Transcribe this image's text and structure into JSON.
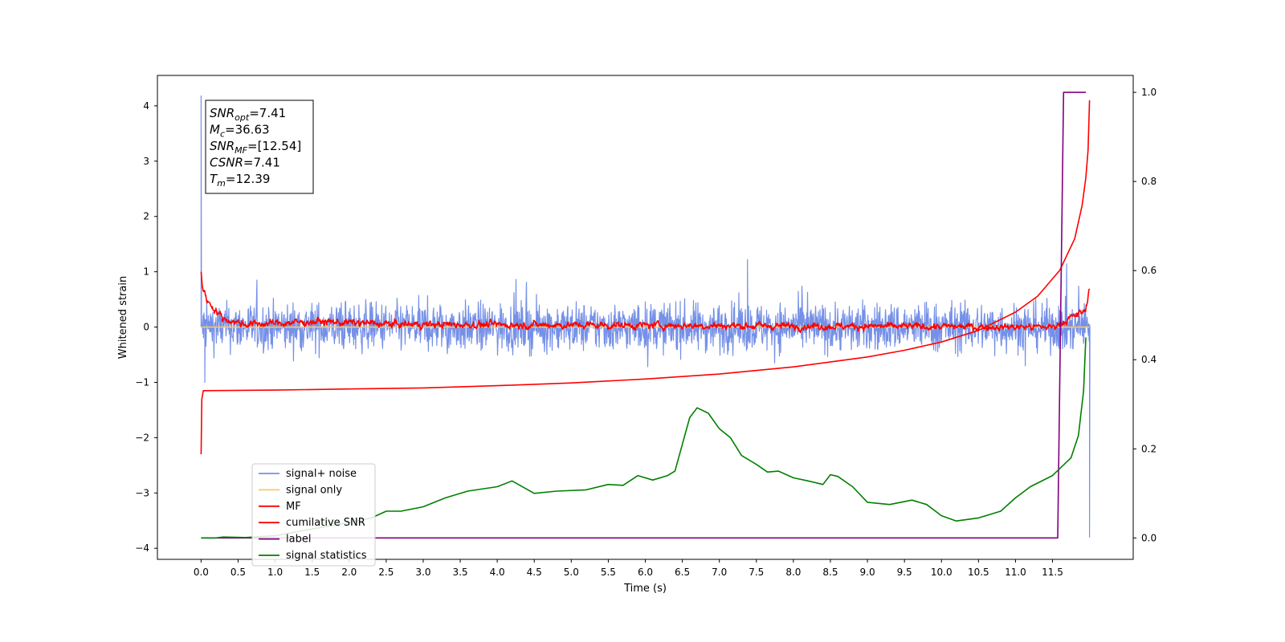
{
  "chart_data": {
    "type": "line",
    "title": "",
    "xlabel": "Time (s)",
    "ylabel": "Whitened strain",
    "y2label": "",
    "xlim": [
      -0.59,
      12.59
    ],
    "ylim": [
      -4.2,
      4.55
    ],
    "y2lim": [
      -0.048,
      1.038
    ],
    "xticks": [
      0.0,
      0.5,
      1.0,
      1.5,
      2.0,
      2.5,
      3.0,
      3.5,
      4.0,
      4.5,
      5.0,
      5.5,
      6.0,
      6.5,
      7.0,
      7.5,
      8.0,
      8.5,
      9.0,
      9.5,
      10.0,
      10.5,
      11.0,
      11.5
    ],
    "xtick_labels": [
      "0.0",
      "0.5",
      "1.0",
      "1.5",
      "2.0",
      "2.5",
      "3.0",
      "3.5",
      "4.0",
      "4.5",
      "5.0",
      "5.5",
      "6.0",
      "6.5",
      "7.0",
      "7.5",
      "8.0",
      "8.5",
      "9.0",
      "9.5",
      "10.0",
      "10.5",
      "11.0",
      "11.5"
    ],
    "yticks": [
      -4,
      -3,
      -2,
      -1,
      0,
      1,
      2,
      3,
      4
    ],
    "ytick_labels": [
      "−4",
      "−3",
      "−2",
      "−1",
      "0",
      "1",
      "2",
      "3",
      "4"
    ],
    "y2ticks": [
      0.0,
      0.2,
      0.4,
      0.6,
      0.8,
      1.0
    ],
    "y2tick_labels": [
      "0.0",
      "0.2",
      "0.4",
      "0.6",
      "0.8",
      "1.0"
    ],
    "grid": false,
    "legend_position": "lower-left",
    "annotation": {
      "lines": [
        {
          "label": "SNR",
          "sub": "opt",
          "value": "=7.41"
        },
        {
          "label": "M",
          "sub": "c",
          "value": "=36.63"
        },
        {
          "label": "SNR",
          "sub": "MF",
          "value": "=[12.54]"
        },
        {
          "label": "CSNR",
          "sub": "",
          "value": "=7.41"
        },
        {
          "label": "T",
          "sub": "m",
          "value": "=12.39"
        }
      ]
    },
    "series": [
      {
        "name": "signal+ noise",
        "axis": "left",
        "color": "#7590e8",
        "kind": "noise",
        "x_range": [
          0.0,
          12.0
        ],
        "amplitude": 0.42,
        "mean": 0.0,
        "spikes": [
          {
            "x": 0.0,
            "y": 4.18
          },
          {
            "x": 0.05,
            "y": -1.0
          },
          {
            "x": 7.38,
            "y": 1.22
          },
          {
            "x": 12.0,
            "y": -3.8
          }
        ]
      },
      {
        "name": "signal only",
        "axis": "left",
        "color": "#f5c870",
        "kind": "flat",
        "x_range": [
          0.0,
          12.0
        ],
        "mean": 0.0
      },
      {
        "name": "MF",
        "axis": "left",
        "color": "#ff0000",
        "kind": "noise",
        "x_range": [
          0.0,
          12.0
        ],
        "amplitude": 0.07,
        "mean": -0.02,
        "points": [
          [
            0.0,
            1.0
          ],
          [
            0.02,
            0.7
          ],
          [
            0.1,
            0.45
          ],
          [
            0.3,
            0.15
          ],
          [
            0.6,
            0.05
          ],
          [
            1.6,
            0.1
          ],
          [
            2.6,
            0.05
          ],
          [
            11.5,
            0.0
          ],
          [
            11.95,
            0.3
          ],
          [
            12.0,
            0.75
          ]
        ]
      },
      {
        "name": "cumilative SNR",
        "axis": "left",
        "color": "#ff0000",
        "kind": "points",
        "points": [
          [
            0.0,
            -2.3
          ],
          [
            0.01,
            -1.3
          ],
          [
            0.03,
            -1.15
          ],
          [
            1.0,
            -1.14
          ],
          [
            2.0,
            -1.12
          ],
          [
            3.0,
            -1.1
          ],
          [
            4.0,
            -1.06
          ],
          [
            5.0,
            -1.01
          ],
          [
            6.0,
            -0.94
          ],
          [
            7.0,
            -0.85
          ],
          [
            8.0,
            -0.72
          ],
          [
            9.0,
            -0.54
          ],
          [
            9.5,
            -0.42
          ],
          [
            10.0,
            -0.27
          ],
          [
            10.5,
            -0.06
          ],
          [
            11.0,
            0.27
          ],
          [
            11.3,
            0.56
          ],
          [
            11.6,
            1.03
          ],
          [
            11.8,
            1.6
          ],
          [
            11.9,
            2.2
          ],
          [
            11.95,
            2.7
          ],
          [
            11.98,
            3.2
          ],
          [
            12.0,
            4.1
          ]
        ]
      },
      {
        "name": "label",
        "axis": "right",
        "color": "#800080",
        "kind": "points",
        "points": [
          [
            0.0,
            0.0
          ],
          [
            11.57,
            0.0
          ],
          [
            11.65,
            1.0
          ],
          [
            11.95,
            1.0
          ]
        ]
      },
      {
        "name": "signal statistics",
        "axis": "right",
        "color": "#008000",
        "kind": "points",
        "points": [
          [
            0.0,
            0.0
          ],
          [
            0.2,
            0.0
          ],
          [
            0.3,
            0.002
          ],
          [
            0.6,
            0.001
          ],
          [
            1.0,
            0.005
          ],
          [
            1.5,
            0.02
          ],
          [
            2.0,
            0.035
          ],
          [
            2.3,
            0.045
          ],
          [
            2.5,
            0.06
          ],
          [
            2.7,
            0.06
          ],
          [
            3.0,
            0.07
          ],
          [
            3.3,
            0.09
          ],
          [
            3.6,
            0.105
          ],
          [
            4.0,
            0.115
          ],
          [
            4.2,
            0.128
          ],
          [
            4.5,
            0.1
          ],
          [
            4.8,
            0.105
          ],
          [
            5.2,
            0.108
          ],
          [
            5.5,
            0.12
          ],
          [
            5.7,
            0.118
          ],
          [
            5.9,
            0.14
          ],
          [
            6.1,
            0.13
          ],
          [
            6.3,
            0.14
          ],
          [
            6.4,
            0.15
          ],
          [
            6.5,
            0.21
          ],
          [
            6.6,
            0.27
          ],
          [
            6.7,
            0.292
          ],
          [
            6.85,
            0.28
          ],
          [
            7.0,
            0.245
          ],
          [
            7.15,
            0.225
          ],
          [
            7.3,
            0.185
          ],
          [
            7.5,
            0.165
          ],
          [
            7.65,
            0.148
          ],
          [
            7.8,
            0.15
          ],
          [
            8.0,
            0.135
          ],
          [
            8.2,
            0.128
          ],
          [
            8.4,
            0.12
          ],
          [
            8.5,
            0.142
          ],
          [
            8.6,
            0.138
          ],
          [
            8.8,
            0.115
          ],
          [
            9.0,
            0.08
          ],
          [
            9.3,
            0.075
          ],
          [
            9.6,
            0.085
          ],
          [
            9.8,
            0.075
          ],
          [
            10.0,
            0.05
          ],
          [
            10.2,
            0.038
          ],
          [
            10.5,
            0.045
          ],
          [
            10.8,
            0.06
          ],
          [
            11.0,
            0.09
          ],
          [
            11.2,
            0.115
          ],
          [
            11.5,
            0.14
          ],
          [
            11.75,
            0.18
          ],
          [
            11.85,
            0.23
          ],
          [
            11.92,
            0.33
          ],
          [
            11.95,
            0.45
          ]
        ]
      }
    ]
  }
}
